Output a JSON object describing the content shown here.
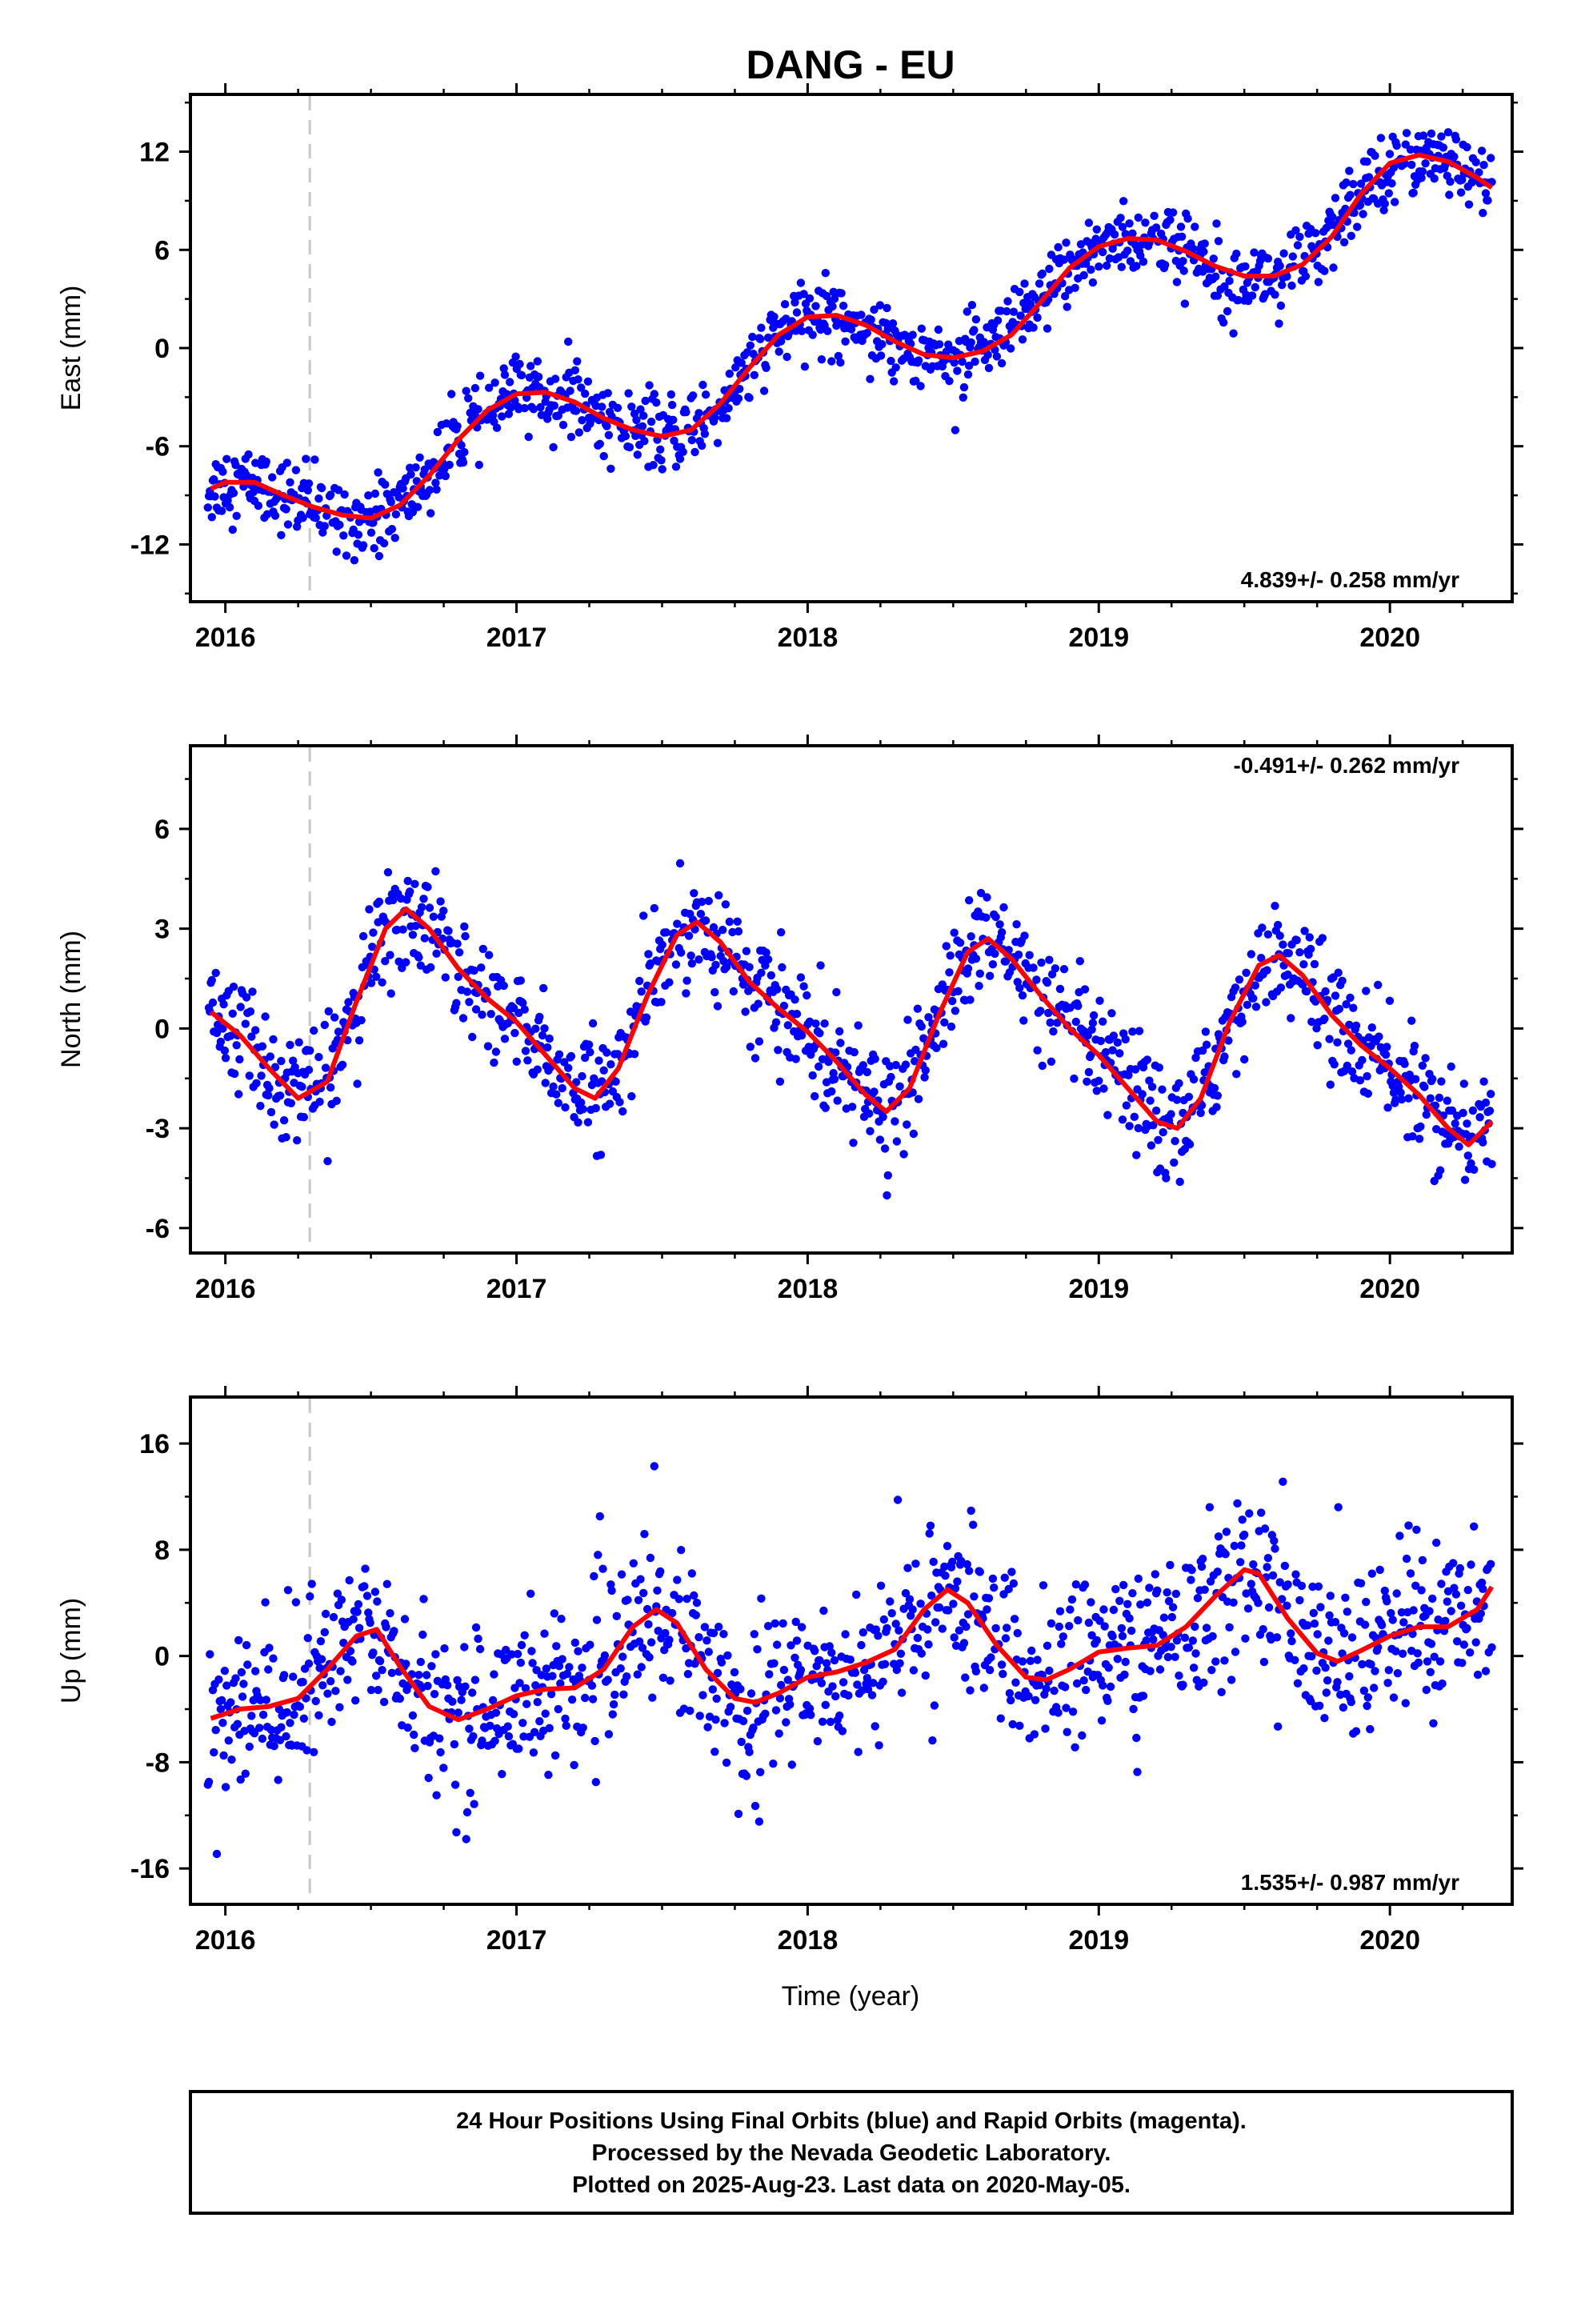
{
  "title": "DANG - EU",
  "chart_data": [
    {
      "type": "scatter",
      "ylabel": "East (mm)",
      "xlabel": "",
      "xlim": [
        2015.88,
        2020.42
      ],
      "ylim": [
        -15.5,
        15.5
      ],
      "xticks": [
        "2016",
        "2017",
        "2018",
        "2019",
        "2020"
      ],
      "yticks": [
        "12",
        "6",
        "0",
        "-6",
        "-12"
      ],
      "ytick_values": [
        12,
        6,
        0,
        -6,
        -12
      ],
      "rate_text": "4.839+/- 0.258 mm/yr",
      "rate_position": "bottom-right",
      "vline_x": 2016.29,
      "series": [
        {
          "kind": "points",
          "color": "#0000ff",
          "trend": 4.839,
          "anchor_t": 2016.0,
          "anchor_v": -8.6,
          "annual_amp": 1.9,
          "annual_phase": 0.35,
          "semi_amp": 0.3,
          "noise": 1.3
        },
        {
          "kind": "fit",
          "color": "#ff0000",
          "x": [
            2015.95,
            2016.0,
            2016.1,
            2016.2,
            2016.3,
            2016.4,
            2016.5,
            2016.6,
            2016.7,
            2016.8,
            2016.9,
            2017.0,
            2017.1,
            2017.2,
            2017.3,
            2017.4,
            2017.5,
            2017.6,
            2017.7,
            2017.8,
            2017.9,
            2018.0,
            2018.1,
            2018.2,
            2018.3,
            2018.4,
            2018.5,
            2018.6,
            2018.7,
            2018.8,
            2018.9,
            2019.0,
            2019.1,
            2019.2,
            2019.3,
            2019.4,
            2019.5,
            2019.6,
            2019.7,
            2019.8,
            2019.9,
            2020.0,
            2020.1,
            2020.2,
            2020.3,
            2020.35
          ],
          "y": [
            -8.6,
            -8.2,
            -8.2,
            -9.0,
            -9.7,
            -10.2,
            -10.4,
            -9.6,
            -7.8,
            -5.6,
            -3.8,
            -2.8,
            -2.7,
            -3.3,
            -4.3,
            -5.0,
            -5.4,
            -5.0,
            -3.4,
            -1.2,
            0.8,
            1.9,
            2.0,
            1.4,
            0.4,
            -0.4,
            -0.6,
            -0.2,
            0.8,
            2.8,
            4.9,
            6.2,
            6.7,
            6.6,
            5.9,
            5.0,
            4.4,
            4.4,
            5.1,
            6.8,
            9.4,
            11.3,
            11.8,
            11.4,
            10.4,
            9.8
          ]
        }
      ]
    },
    {
      "type": "scatter",
      "ylabel": "North (mm)",
      "xlabel": "",
      "xlim": [
        2015.88,
        2020.42
      ],
      "ylim": [
        -6.75,
        8.5
      ],
      "xticks": [
        "2016",
        "2017",
        "2018",
        "2019",
        "2020"
      ],
      "yticks": [
        "6",
        "3",
        "0",
        "-3",
        "-6"
      ],
      "ytick_values": [
        6,
        3,
        0,
        -3,
        -6
      ],
      "rate_text": "-0.491+/- 0.262 mm/yr",
      "rate_position": "top-right",
      "vline_x": 2016.29,
      "series": [
        {
          "kind": "points",
          "color": "#0000ff",
          "trend": -0.491,
          "anchor_t": 2016.0,
          "anchor_v": 0.0,
          "annual_amp": 2.8,
          "annual_phase": 3.2,
          "semi_amp": 0.5,
          "noise": 0.95
        },
        {
          "kind": "fit",
          "color": "#ff0000",
          "x": [
            2015.95,
            2016.05,
            2016.15,
            2016.25,
            2016.35,
            2016.45,
            2016.55,
            2016.62,
            2016.7,
            2016.8,
            2016.9,
            2017.0,
            2017.1,
            2017.2,
            2017.27,
            2017.35,
            2017.45,
            2017.55,
            2017.62,
            2017.7,
            2017.8,
            2017.9,
            2018.0,
            2018.1,
            2018.2,
            2018.27,
            2018.35,
            2018.45,
            2018.55,
            2018.62,
            2018.7,
            2018.8,
            2018.9,
            2019.0,
            2019.1,
            2019.2,
            2019.27,
            2019.35,
            2019.45,
            2019.55,
            2019.62,
            2019.7,
            2019.8,
            2019.9,
            2020.0,
            2020.1,
            2020.2,
            2020.27,
            2020.35
          ],
          "y": [
            0.5,
            -0.2,
            -1.2,
            -2.1,
            -1.6,
            0.8,
            3.0,
            3.6,
            3.0,
            1.8,
            0.9,
            0.2,
            -0.8,
            -1.8,
            -2.1,
            -1.2,
            1.0,
            2.8,
            3.2,
            2.6,
            1.4,
            0.6,
            -0.1,
            -1.0,
            -2.0,
            -2.5,
            -1.8,
            0.4,
            2.3,
            2.7,
            2.1,
            1.0,
            0.0,
            -0.8,
            -1.8,
            -2.8,
            -3.0,
            -2.1,
            0.2,
            1.9,
            2.2,
            1.6,
            0.4,
            -0.5,
            -1.2,
            -2.0,
            -3.0,
            -3.5,
            -2.8
          ]
        }
      ]
    },
    {
      "type": "scatter",
      "ylabel": "Up (mm)",
      "xlabel": "Time (year)",
      "xlim": [
        2015.88,
        2020.42
      ],
      "ylim": [
        -18.7,
        19.5
      ],
      "xticks": [
        "2016",
        "2017",
        "2018",
        "2019",
        "2020"
      ],
      "yticks": [
        "16",
        "8",
        "0",
        "-8",
        "-16"
      ],
      "ytick_values": [
        16,
        8,
        0,
        -8,
        -16
      ],
      "rate_text": "1.535+/- 0.987 mm/yr",
      "rate_position": "bottom-right",
      "vline_x": 2016.29,
      "series": [
        {
          "kind": "points",
          "color": "#0000ff",
          "trend": 1.535,
          "anchor_t": 2016.0,
          "anchor_v": -3.0,
          "annual_amp": 3.5,
          "annual_phase": 2.9,
          "semi_amp": 0.8,
          "noise": 3.6
        },
        {
          "kind": "fit",
          "color": "#ff0000",
          "x": [
            2015.95,
            2016.05,
            2016.15,
            2016.25,
            2016.35,
            2016.45,
            2016.52,
            2016.6,
            2016.7,
            2016.8,
            2016.9,
            2017.0,
            2017.1,
            2017.2,
            2017.3,
            2017.4,
            2017.48,
            2017.55,
            2017.65,
            2017.75,
            2017.82,
            2017.9,
            2018.0,
            2018.1,
            2018.2,
            2018.3,
            2018.4,
            2018.48,
            2018.55,
            2018.65,
            2018.75,
            2018.82,
            2018.9,
            2019.0,
            2019.1,
            2019.2,
            2019.3,
            2019.4,
            2019.5,
            2019.55,
            2019.65,
            2019.75,
            2019.82,
            2019.9,
            2020.0,
            2020.1,
            2020.2,
            2020.3,
            2020.35
          ],
          "y": [
            -4.7,
            -4.0,
            -3.8,
            -3.2,
            -1.0,
            1.5,
            2.0,
            -0.8,
            -3.8,
            -4.8,
            -4.0,
            -3.0,
            -2.5,
            -2.4,
            -1.0,
            2.2,
            3.5,
            2.5,
            -1.0,
            -3.2,
            -3.5,
            -2.8,
            -1.6,
            -1.2,
            -0.5,
            0.5,
            3.5,
            5.0,
            4.0,
            0.8,
            -1.6,
            -1.8,
            -1.0,
            0.3,
            0.6,
            0.8,
            2.2,
            4.5,
            6.5,
            6.2,
            2.8,
            0.2,
            -0.4,
            0.4,
            1.5,
            2.2,
            2.2,
            3.5,
            5.2
          ]
        }
      ]
    }
  ],
  "footer": {
    "line1": "24 Hour Positions Using Final Orbits (blue) and Rapid Orbits (magenta).",
    "line2": "Processed by the Nevada Geodetic Laboratory.",
    "line3": "Plotted on 2025-Aug-23. Last data on 2020-May-05."
  }
}
